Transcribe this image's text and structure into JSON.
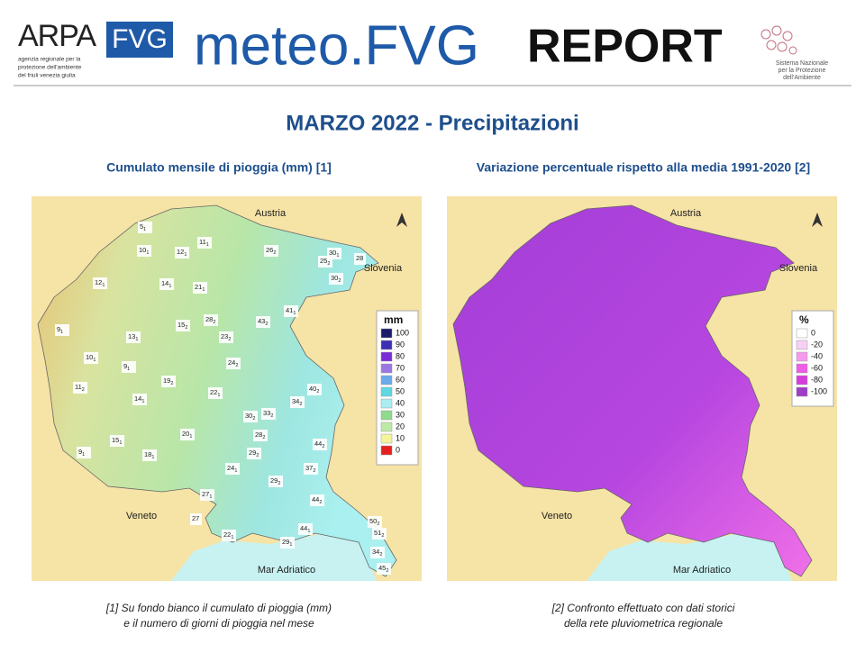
{
  "header": {
    "logo_left": {
      "arpa": "ARPA",
      "fvg": "FVG",
      "tagline": [
        "agenzia regionale per la",
        "protezione dell'ambiente",
        "del friuli venezia giulia"
      ]
    },
    "brand": "meteo.FVG",
    "report": "REPORT",
    "logo_right": [
      "Sistema Nazionale",
      "per la Protezione",
      "dell'Ambiente"
    ]
  },
  "title": "MARZO 2022 - Precipitazioni",
  "left_map": {
    "subtitle": "Cumulato mensile di pioggia (mm) [1]",
    "places": [
      "Austria",
      "Slovenia",
      "Veneto",
      "Mar Adriatico"
    ],
    "legend": {
      "title": "mm",
      "items": [
        {
          "label": "100",
          "color": "#1b1b6b"
        },
        {
          "label": "90",
          "color": "#3d2fb4"
        },
        {
          "label": "80",
          "color": "#7a2ed8"
        },
        {
          "label": "70",
          "color": "#9c76e2"
        },
        {
          "label": "60",
          "color": "#6aa9ea"
        },
        {
          "label": "50",
          "color": "#5ed8e2"
        },
        {
          "label": "40",
          "color": "#aaeef2"
        },
        {
          "label": "30",
          "color": "#8edb8c"
        },
        {
          "label": "20",
          "color": "#bdeaa4"
        },
        {
          "label": "10",
          "color": "#f4f49c"
        },
        {
          "label": "0",
          "color": "#e61e1e"
        }
      ]
    },
    "stations": [
      [
        "5",
        "1"
      ],
      [
        "10",
        "1"
      ],
      [
        "12",
        "1"
      ],
      [
        "11",
        "1"
      ],
      [
        "26",
        "2"
      ],
      [
        "30",
        "1"
      ],
      [
        "25",
        "2"
      ],
      [
        "28",
        null
      ],
      [
        "30",
        "2"
      ],
      [
        "12",
        "1"
      ],
      [
        "14",
        "1"
      ],
      [
        "21",
        "1"
      ],
      [
        "41",
        "1"
      ],
      [
        "43",
        "2"
      ],
      [
        "28",
        "2"
      ],
      [
        "15",
        "2"
      ],
      [
        "9",
        "1"
      ],
      [
        "13",
        "1"
      ],
      [
        "23",
        "2"
      ],
      [
        "10",
        "1"
      ],
      [
        "9",
        "1"
      ],
      [
        "24",
        "2"
      ],
      [
        "19",
        "2"
      ],
      [
        "11",
        "2"
      ],
      [
        "14",
        "1"
      ],
      [
        "22",
        "1"
      ],
      [
        "40",
        "2"
      ],
      [
        "34",
        "2"
      ],
      [
        "30",
        "2"
      ],
      [
        "33",
        "2"
      ],
      [
        "20",
        "1"
      ],
      [
        "28",
        "2"
      ],
      [
        "15",
        "1"
      ],
      [
        "9",
        "1"
      ],
      [
        "18",
        "1"
      ],
      [
        "29",
        "2"
      ],
      [
        "44",
        "2"
      ],
      [
        "37",
        "2"
      ],
      [
        "24",
        "1"
      ],
      [
        "29",
        "2"
      ],
      [
        "27",
        "1"
      ],
      [
        "44",
        "2"
      ],
      [
        "27",
        null
      ],
      [
        "22",
        "1"
      ],
      [
        "44",
        "1"
      ],
      [
        "29",
        "1"
      ],
      [
        "50",
        "2"
      ],
      [
        "51",
        "2"
      ],
      [
        "34",
        "2"
      ],
      [
        "45",
        "2"
      ]
    ],
    "footnote": [
      "[1] Su fondo bianco il cumulato di pioggia (mm)",
      "e il numero di giorni di pioggia nel mese"
    ]
  },
  "right_map": {
    "subtitle": "Variazione percentuale rispetto alla media 1991-2020 [2]",
    "places": [
      "Austria",
      "Slovenia",
      "Veneto",
      "Mar Adriatico"
    ],
    "legend": {
      "title": "%",
      "items": [
        {
          "label": "0",
          "color": "#ffffff"
        },
        {
          "label": "-20",
          "color": "#f8d0f4"
        },
        {
          "label": "-40",
          "color": "#f49aee"
        },
        {
          "label": "-60",
          "color": "#ef5ce6"
        },
        {
          "label": "-80",
          "color": "#d63cdc"
        },
        {
          "label": "-100",
          "color": "#a03cc8"
        }
      ]
    },
    "footnote": [
      "[2] Confronto  effettuato con dati storici",
      "della rete pluviometrica regionale"
    ]
  }
}
